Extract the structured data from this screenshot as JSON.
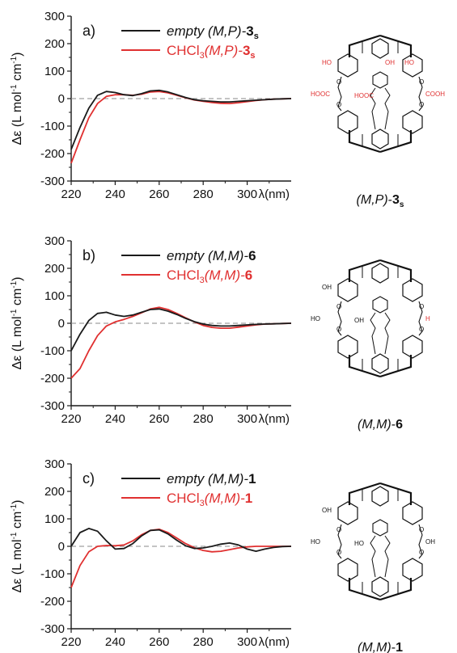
{
  "colors": {
    "empty": "#1a1a1a",
    "chcl3": "#e03030",
    "axis": "#1a1a1a",
    "zero": "#888888"
  },
  "panels": [
    {
      "tag": "a)",
      "legend": [
        {
          "key": "empty",
          "prefix": "empty ",
          "label": "(M,P)-",
          "bold": "3",
          "sub": "s"
        },
        {
          "key": "chcl3",
          "prefix": "CHCl",
          "sub1": "3",
          "label": "(M,P)-",
          "bold": "3",
          "sub": "s"
        }
      ],
      "molecule_label": {
        "italic": "(M,P)",
        "sep": "-",
        "bold": "3",
        "sub": "s"
      },
      "substituents": [
        "HOOC",
        "HOOC",
        "COOH",
        "HO",
        "OH",
        "HO"
      ]
    },
    {
      "tag": "b)",
      "legend": [
        {
          "key": "empty",
          "prefix": "empty ",
          "label": "(M,M)-",
          "bold": "6",
          "sub": ""
        },
        {
          "key": "chcl3",
          "prefix": "CHCl",
          "sub1": "3",
          "label": "(M,M)-",
          "bold": "6",
          "sub": ""
        }
      ],
      "molecule_label": {
        "italic": "(M,M)",
        "sep": "-",
        "bold": "6",
        "sub": ""
      },
      "substituents": [
        "HO",
        "OH",
        "H",
        "OH"
      ]
    },
    {
      "tag": "c)",
      "legend": [
        {
          "key": "empty",
          "prefix": "empty ",
          "label": "(M,M)-",
          "bold": "1",
          "sub": ""
        },
        {
          "key": "chcl3",
          "prefix": "CHCl",
          "sub1": "3",
          "label": "(M,M)-",
          "bold": "1",
          "sub": ""
        }
      ],
      "molecule_label": {
        "italic": "(M,M)",
        "sep": "-",
        "bold": "1",
        "sub": ""
      },
      "substituents": [
        "HO",
        "HO",
        "OH",
        "OH"
      ]
    }
  ],
  "chart_data": [
    {
      "type": "line",
      "xlabel": "λ(nm)",
      "ylabel": "Δε (L mol-1 cm-1)",
      "ylabel_parts": {
        "a": "Δε (L mol",
        "sup1": "-1",
        "b": " cm",
        "sup2": "-1",
        "c": ")"
      },
      "xlim": [
        220,
        320
      ],
      "ylim": [
        -300,
        300
      ],
      "xticks": [
        220,
        240,
        260,
        280,
        300
      ],
      "yticks": [
        300,
        200,
        100,
        0,
        -100,
        -200,
        -300
      ],
      "x": [
        220,
        224,
        228,
        232,
        236,
        240,
        244,
        248,
        252,
        256,
        260,
        264,
        268,
        272,
        276,
        280,
        284,
        288,
        292,
        296,
        300,
        304,
        308,
        312,
        316,
        320
      ],
      "series": [
        {
          "name": "empty (M,P)-3s",
          "key": "empty",
          "values": [
            -185,
            -105,
            -35,
            12,
            26,
            22,
            14,
            11,
            18,
            28,
            30,
            24,
            14,
            4,
            -4,
            -8,
            -10,
            -12,
            -12,
            -10,
            -8,
            -6,
            -4,
            -2,
            -1,
            0
          ]
        },
        {
          "name": "CHCl3(M,P)-3s",
          "key": "chcl3",
          "values": [
            -235,
            -150,
            -70,
            -18,
            8,
            14,
            14,
            12,
            16,
            24,
            26,
            21,
            12,
            3,
            -5,
            -10,
            -14,
            -17,
            -18,
            -15,
            -11,
            -7,
            -4,
            -2,
            -1,
            0
          ]
        }
      ]
    },
    {
      "type": "line",
      "xlabel": "λ(nm)",
      "ylabel": "Δε (L mol-1 cm-1)",
      "ylabel_parts": {
        "a": "Δε (L mol",
        "sup1": "-1",
        "b": " cm",
        "sup2": "-1",
        "c": ")"
      },
      "xlim": [
        220,
        320
      ],
      "ylim": [
        -300,
        300
      ],
      "xticks": [
        220,
        240,
        260,
        280,
        300
      ],
      "yticks": [
        300,
        200,
        100,
        0,
        -100,
        -200,
        -300
      ],
      "x": [
        220,
        224,
        228,
        232,
        236,
        240,
        244,
        248,
        252,
        256,
        260,
        264,
        268,
        272,
        276,
        280,
        284,
        288,
        292,
        296,
        300,
        304,
        308,
        312,
        316,
        320
      ],
      "series": [
        {
          "name": "empty (M,M)-6",
          "key": "empty",
          "values": [
            -100,
            -40,
            10,
            36,
            40,
            30,
            25,
            30,
            40,
            50,
            52,
            44,
            32,
            18,
            6,
            -3,
            -8,
            -10,
            -10,
            -8,
            -6,
            -4,
            -3,
            -2,
            -1,
            0
          ]
        },
        {
          "name": "CHCl3(M,M)-6",
          "key": "chcl3",
          "values": [
            -200,
            -165,
            -100,
            -45,
            -10,
            5,
            14,
            25,
            38,
            52,
            58,
            50,
            36,
            20,
            5,
            -8,
            -15,
            -18,
            -18,
            -14,
            -10,
            -6,
            -3,
            -2,
            -1,
            0
          ]
        }
      ]
    },
    {
      "type": "line",
      "xlabel": "λ(nm)",
      "ylabel": "Δε (L mol-1 cm-1)",
      "ylabel_parts": {
        "a": "Δε (L mol",
        "sup1": "-1",
        "b": " cm",
        "sup2": "-1",
        "c": ")"
      },
      "xlim": [
        220,
        320
      ],
      "ylim": [
        -300,
        300
      ],
      "xticks": [
        220,
        240,
        260,
        280,
        300
      ],
      "yticks": [
        300,
        200,
        100,
        0,
        -100,
        -200,
        -300
      ],
      "x": [
        220,
        224,
        228,
        232,
        236,
        240,
        244,
        248,
        252,
        256,
        260,
        264,
        268,
        272,
        276,
        280,
        284,
        288,
        292,
        296,
        300,
        304,
        308,
        312,
        316,
        320
      ],
      "series": [
        {
          "name": "empty (M,M)-1",
          "key": "empty",
          "values": [
            0,
            50,
            65,
            55,
            20,
            -10,
            -8,
            10,
            38,
            58,
            60,
            45,
            22,
            2,
            -8,
            -6,
            0,
            8,
            12,
            5,
            -10,
            -18,
            -10,
            -4,
            -1,
            0
          ]
        },
        {
          "name": "CHCl3(M,M)-1",
          "key": "chcl3",
          "values": [
            -150,
            -70,
            -20,
            0,
            3,
            2,
            5,
            20,
            42,
            58,
            62,
            50,
            30,
            10,
            -5,
            -15,
            -20,
            -18,
            -12,
            -6,
            -2,
            0,
            0,
            0,
            0,
            0
          ]
        }
      ]
    }
  ]
}
